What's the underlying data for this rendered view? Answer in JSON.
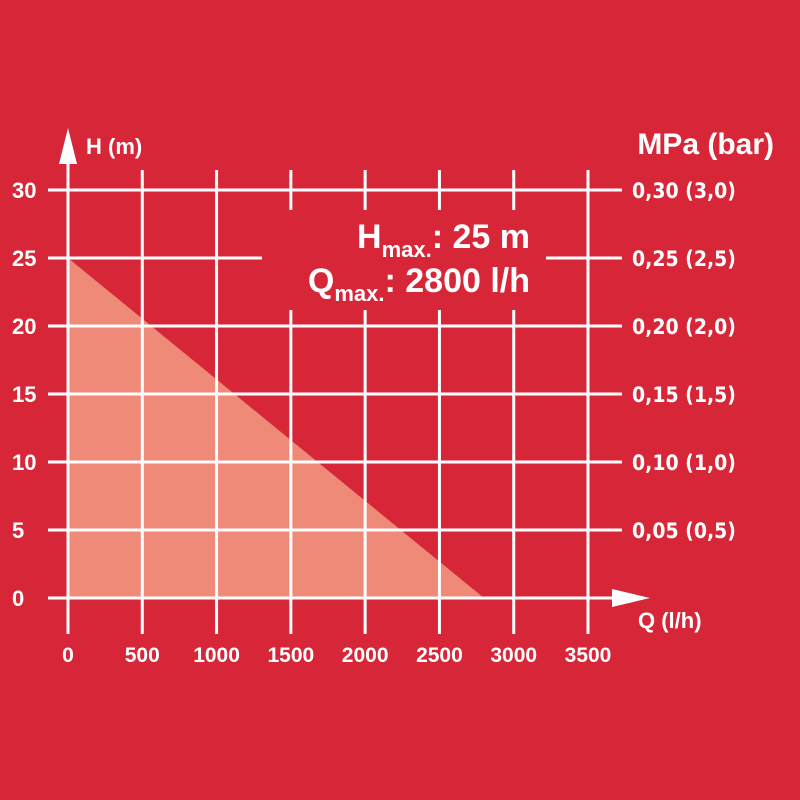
{
  "colors": {
    "background": "#D72638",
    "area": "#EF8A78",
    "grid": "#FFFFFF",
    "text": "#FFFFFF"
  },
  "chart_data": {
    "type": "area",
    "x": [
      0,
      2800
    ],
    "y": [
      25,
      0
    ],
    "xlabel": "Q (l/h)",
    "ylabel": "H (m)",
    "y2label": "MPa (bar)",
    "xlim": [
      0,
      3500
    ],
    "ylim": [
      0,
      30
    ],
    "xticks": [
      "0",
      "500",
      "1000",
      "1500",
      "2000",
      "2500",
      "3000",
      "3500"
    ],
    "yticks": [
      "0",
      "5",
      "10",
      "15",
      "20",
      "25",
      "30"
    ],
    "y2ticks": [
      "0,05 (0,5)",
      "0,10 (1,0)",
      "0,15 (1,5)",
      "0,20 (2,0)",
      "0,25 (2,5)",
      "0,30 (3,0)"
    ],
    "grid": true,
    "annotations": {
      "hmax_main": "H",
      "hmax_sub": "max.",
      "hmax_value": ": 25 m",
      "qmax_main": "Q",
      "qmax_sub": "max.",
      "qmax_value": ": 2800 l/h"
    }
  }
}
